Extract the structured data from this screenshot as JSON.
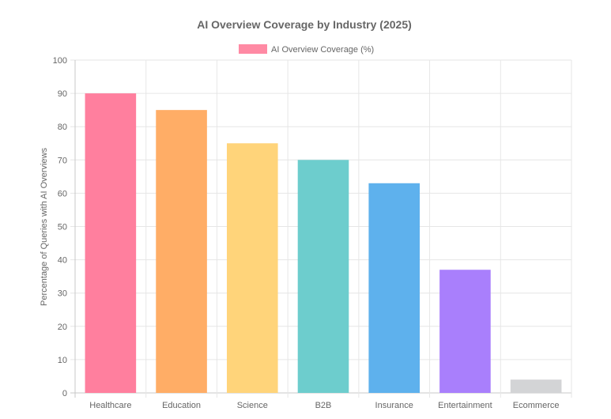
{
  "chart_data": {
    "type": "bar",
    "title": "AI Overview Coverage by Industry (2025)",
    "ylabel": "Percentage of Queries with AI Overviews",
    "xlabel": "",
    "ylim": [
      0,
      100
    ],
    "y_ticks": [
      0,
      10,
      20,
      30,
      40,
      50,
      60,
      70,
      80,
      90,
      100
    ],
    "grid": true,
    "legend_position": "top",
    "categories": [
      "Healthcare",
      "Education",
      "Science",
      "B2B",
      "Insurance",
      "Entertainment",
      "Ecommerce"
    ],
    "series": [
      {
        "name": "AI Overview Coverage (%)",
        "values": [
          90,
          85,
          75,
          70,
          63,
          37,
          4
        ],
        "colors": [
          "#ff7f9e",
          "#ffad66",
          "#ffd47a",
          "#6dcdcd",
          "#5eb1ed",
          "#a97ffc",
          "#d3d4d6"
        ]
      }
    ],
    "legend_color": "#ff8aa4"
  }
}
